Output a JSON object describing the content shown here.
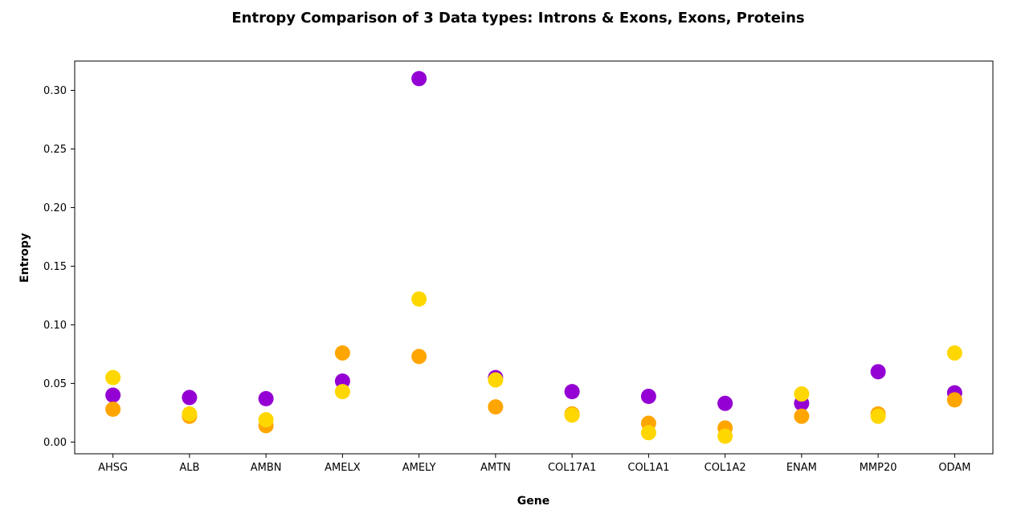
{
  "chart_data": {
    "type": "scatter",
    "title": "Entropy Comparison of 3 Data types: Introns & Exons, Exons, Proteins",
    "xlabel": "Gene",
    "ylabel": "Entropy",
    "categories": [
      "AHSG",
      "ALB",
      "AMBN",
      "AMELX",
      "AMELY",
      "AMTN",
      "COL17A1",
      "COL1A1",
      "COL1A2",
      "ENAM",
      "MMP20",
      "ODAM"
    ],
    "ylim": [
      -0.01,
      0.325
    ],
    "yticks": [
      0.0,
      0.05,
      0.1,
      0.15,
      0.2,
      0.25,
      0.3
    ],
    "ytick_labels": [
      "0.00",
      "0.05",
      "0.10",
      "0.15",
      "0.20",
      "0.25",
      "0.30"
    ],
    "grid": false,
    "series": [
      {
        "name": "Introns & Exons",
        "color": "#9400D3",
        "values": [
          0.04,
          0.038,
          0.037,
          0.052,
          0.31,
          0.055,
          0.043,
          0.039,
          0.033,
          0.033,
          0.06,
          0.042
        ]
      },
      {
        "name": "Exons",
        "color": "#FFA500",
        "values": [
          0.028,
          0.022,
          0.014,
          0.076,
          0.073,
          0.03,
          0.024,
          0.016,
          0.012,
          0.022,
          0.024,
          0.036
        ]
      },
      {
        "name": "Proteins",
        "color": "#FFD700",
        "values": [
          0.055,
          0.024,
          0.019,
          0.043,
          0.122,
          0.053,
          0.023,
          0.008,
          0.005,
          0.041,
          0.022,
          0.076
        ]
      }
    ]
  }
}
